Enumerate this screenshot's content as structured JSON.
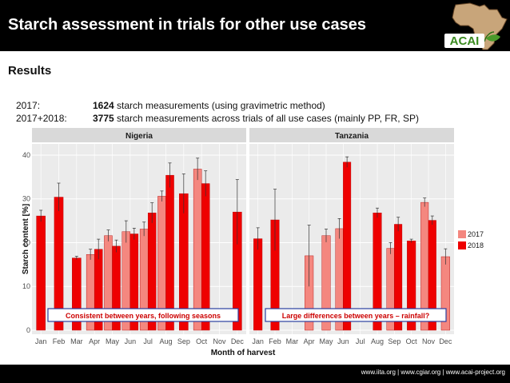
{
  "header": {
    "title": "Starch assessment in trials for other use cases",
    "logo_text": "ACAI"
  },
  "section": {
    "title": "Results"
  },
  "stats": [
    {
      "label": "2017:",
      "count": "1624",
      "text": " starch measurements (using gravimetric method)"
    },
    {
      "label": "2017+2018:",
      "count": "3775",
      "text": " starch measurements across trials of all use cases (mainly PP, FR, SP)"
    }
  ],
  "annotations": {
    "left": "Consistent between years, following seasons",
    "right": "Large differences between years – rainfall?"
  },
  "footer": {
    "text": "www.iita.org | www.cgiar.org | www.acai-project.org"
  },
  "colors": {
    "y2017": "#f4877f",
    "y2018": "#ee0000",
    "annotation": "#cc0000",
    "strip": "#d9d9d9",
    "panel": "#ebebeb"
  },
  "chart_data": {
    "type": "bar",
    "xlabel": "Month of harvest",
    "ylabel": "Starch content [%]",
    "ylim": [
      0,
      42
    ],
    "yticks": [
      0,
      10,
      20,
      30,
      40
    ],
    "categories": [
      "Jan",
      "Feb",
      "Mar",
      "Apr",
      "May",
      "Jun",
      "Jul",
      "Aug",
      "Sep",
      "Oct",
      "Nov",
      "Dec"
    ],
    "legend": [
      {
        "name": "2017",
        "color": "#f4877f"
      },
      {
        "name": "2018",
        "color": "#ee0000"
      }
    ],
    "facets": [
      {
        "name": "Nigeria",
        "series": [
          {
            "name": "2017",
            "values": [
              null,
              null,
              null,
              17.3,
              21.6,
              22.5,
              23.1,
              30.6,
              null,
              36.8,
              null,
              null
            ],
            "errors": [
              null,
              null,
              null,
              1.2,
              1.3,
              2.5,
              1.6,
              1.2,
              null,
              2.5,
              null,
              null
            ]
          },
          {
            "name": "2018",
            "values": [
              26.1,
              30.4,
              16.5,
              18.5,
              19.2,
              22.0,
              26.8,
              35.4,
              31.2,
              33.5,
              null,
              27.0
            ],
            "errors": [
              1.3,
              3.2,
              0.4,
              2.3,
              1.4,
              1.3,
              2.3,
              2.8,
              4.5,
              2.9,
              null,
              7.4
            ]
          }
        ]
      },
      {
        "name": "Tanzania",
        "series": [
          {
            "name": "2017",
            "values": [
              null,
              null,
              null,
              17.0,
              21.6,
              23.2,
              null,
              null,
              18.7,
              null,
              29.2,
              16.8
            ],
            "errors": [
              null,
              null,
              null,
              7.0,
              1.5,
              2.3,
              null,
              null,
              1.3,
              null,
              1.0,
              1.8
            ]
          },
          {
            "name": "2018",
            "values": [
              20.9,
              25.2,
              null,
              null,
              null,
              38.4,
              null,
              26.8,
              24.2,
              20.4,
              25.1,
              null
            ],
            "errors": [
              2.5,
              7.0,
              null,
              null,
              null,
              1.2,
              null,
              1.1,
              1.6,
              0.4,
              1.0,
              null
            ]
          }
        ]
      }
    ]
  }
}
